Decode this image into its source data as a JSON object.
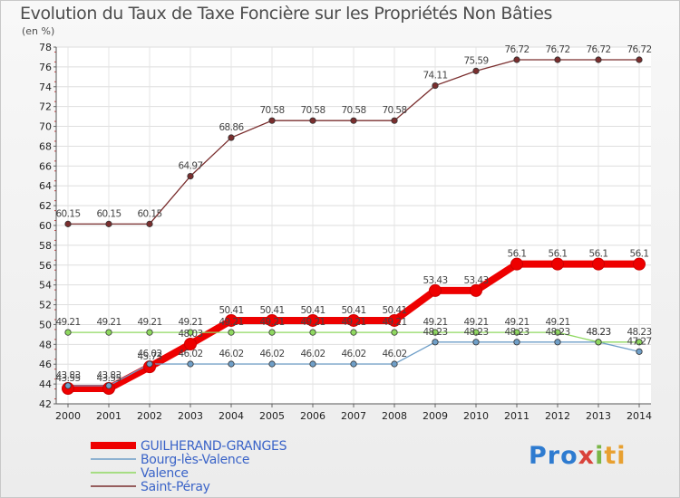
{
  "chart_data": {
    "type": "line",
    "title": "Evolution du Taux de Taxe Foncière sur les Propriétés Non Bâties",
    "ylabel": "(en %)",
    "xlabel": "",
    "ylim": [
      42,
      78
    ],
    "yticks": [
      42,
      44,
      46,
      48,
      50,
      52,
      54,
      56,
      58,
      60,
      62,
      64,
      66,
      68,
      70,
      72,
      74,
      76,
      78
    ],
    "x": [
      "2000",
      "2001",
      "2002",
      "2003",
      "2004",
      "2005",
      "2006",
      "2007",
      "2008",
      "2009",
      "2010",
      "2011",
      "2012",
      "2013",
      "2014"
    ],
    "series": [
      {
        "name": "GUILHERAND-GRANGES",
        "color": "#ee0000",
        "values": [
          43.55,
          43.55,
          45.73,
          48.03,
          50.41,
          50.41,
          50.41,
          50.41,
          50.41,
          53.43,
          53.43,
          56.1,
          56.1,
          56.1,
          56.1
        ],
        "labels": [
          "43.55",
          "43.55",
          "45.73",
          "48.03",
          "50.41",
          "50.41",
          "50.41",
          "50.41",
          "50.41",
          "53.43",
          "53.43",
          "56.1",
          "56.1",
          "56.1",
          "56.1"
        ]
      },
      {
        "name": "Bourg-lès-Valence",
        "color": "#6f9fc8",
        "values": [
          43.83,
          43.83,
          46.02,
          46.02,
          46.02,
          46.02,
          46.02,
          46.02,
          46.02,
          48.23,
          48.23,
          48.23,
          48.23,
          48.23,
          47.27
        ],
        "labels": [
          "43.83",
          "43.83",
          "46.02",
          "46.02",
          "46.02",
          "46.02",
          "46.02",
          "46.02",
          "46.02",
          "48.23",
          "48.23",
          "48.23",
          "48.23",
          "48.23",
          "47.27"
        ]
      },
      {
        "name": "Valence",
        "color": "#8fd860",
        "values": [
          49.21,
          49.21,
          49.21,
          49.21,
          49.21,
          49.21,
          49.21,
          49.21,
          49.21,
          49.21,
          49.21,
          49.21,
          49.21,
          48.23,
          48.23
        ],
        "labels": [
          "49.21",
          "49.21",
          "49.21",
          "49.21",
          "49.21",
          "49.21",
          "49.21",
          "49.21",
          "49.21",
          "49.21",
          "49.21",
          "49.21",
          "49.21",
          "48.23",
          "48.23"
        ]
      },
      {
        "name": "Saint-Péray",
        "color": "#7a2e2e",
        "values": [
          60.15,
          60.15,
          60.15,
          64.97,
          68.86,
          70.58,
          70.58,
          70.58,
          70.58,
          74.11,
          75.59,
          76.72,
          76.72,
          76.72,
          76.72
        ],
        "labels": [
          "60.15",
          "60.15",
          "60.15",
          "64.97",
          "68.86",
          "70.58",
          "70.58",
          "70.58",
          "70.58",
          "74.11",
          "75.59",
          "76.72",
          "76.72",
          "76.72",
          "76.72"
        ]
      }
    ]
  },
  "logo": {
    "p1": "Pro",
    "p2": "x",
    "p3": "i",
    "p4": "ti"
  }
}
